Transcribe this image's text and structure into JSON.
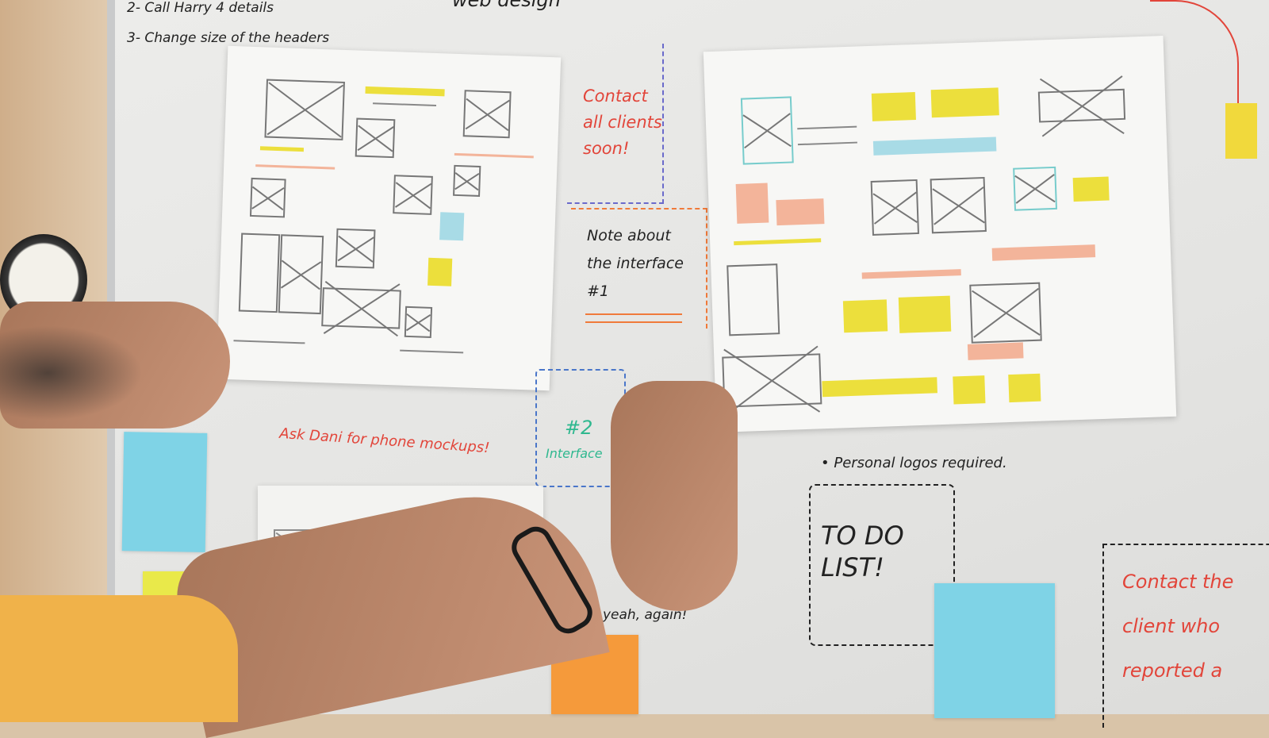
{
  "board_notes": {
    "todo_line_2": "2- Call Harry 4 details",
    "todo_line_3": "3- Change size of the headers",
    "web_design": "web design",
    "contact_all_clients": "Contact all clients soon!",
    "note_interface_1": "Note about the interface #1",
    "interface_2_number": "#2",
    "interface_2_label": "Interface",
    "ask_dani": "Ask Dani for phone mockups!",
    "personal_logos": "• Personal logos required.",
    "todo_list": "TO DO LIST!",
    "contact_client": "Contact the client who reported a",
    "yeah_again": "yeah, again!"
  },
  "colors": {
    "whiteboard": "#e8e8e6",
    "red_marker": "#e2453a",
    "wireframe_yellow": "#ecdf3c",
    "wireframe_pink": "#f3b49a",
    "wireframe_blue": "#a8dbe6",
    "sticky_blue": "#7fd3e6",
    "sticky_yellow": "#e9e94a",
    "sticky_orange": "#f59a3b",
    "sleeve": "#f0b24a"
  }
}
